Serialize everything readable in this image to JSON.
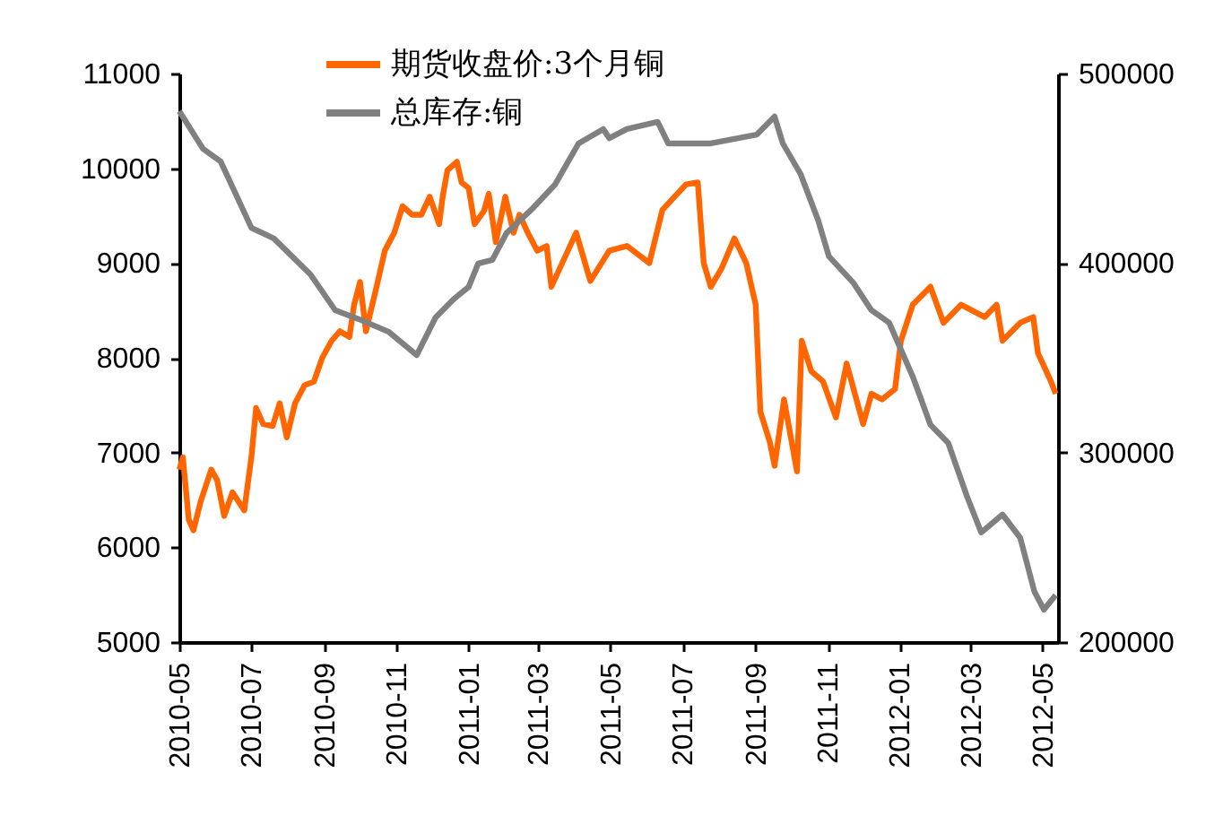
{
  "chart_data": {
    "type": "line",
    "legend": "top",
    "line_style": "solid",
    "marker": "none",
    "grid": false,
    "xlim": [
      "2010-05-01",
      "2012-05-14"
    ],
    "xticks": [
      "2010-05",
      "2010-07",
      "2010-09",
      "2010-11",
      "2011-01",
      "2011-03",
      "2011-05",
      "2011-07",
      "2011-09",
      "2011-11",
      "2012-01",
      "2012-03",
      "2012-05"
    ],
    "ylim": [
      5000,
      11000
    ],
    "yticks": [
      5000,
      6000,
      7000,
      8000,
      9000,
      10000,
      11000
    ],
    "y2lim": [
      200000,
      500000
    ],
    "y2ticks": [
      200000,
      300000,
      400000,
      500000
    ],
    "series": [
      {
        "name": "期货收盘价:3个月铜",
        "color": "#ff6600",
        "x": [
          "2010-05-01",
          "2010-05-04",
          "2010-05-09",
          "2010-05-13",
          "2010-05-19",
          "2010-05-28",
          "2010-06-02",
          "2010-06-08",
          "2010-06-15",
          "2010-06-25",
          "2010-07-01",
          "2010-07-05",
          "2010-07-11",
          "2010-07-19",
          "2010-07-25",
          "2010-07-31",
          "2010-08-07",
          "2010-08-15",
          "2010-08-23",
          "2010-08-30",
          "2010-09-07",
          "2010-09-14",
          "2010-09-22",
          "2010-09-26",
          "2010-10-01",
          "2010-10-06",
          "2010-10-15",
          "2010-10-22",
          "2010-10-30",
          "2010-11-06",
          "2010-11-14",
          "2010-11-22",
          "2010-11-29",
          "2010-12-07",
          "2010-12-10",
          "2010-12-14",
          "2010-12-22",
          "2010-12-26",
          "2011-01-01",
          "2011-01-06",
          "2011-01-14",
          "2011-01-18",
          "2011-01-24",
          "2011-02-01",
          "2011-02-08",
          "2011-02-13",
          "2011-02-20",
          "2011-02-28",
          "2011-03-08",
          "2011-03-12",
          "2011-04-02",
          "2011-04-14",
          "2011-04-30",
          "2011-05-15",
          "2011-06-03",
          "2011-06-14",
          "2011-07-04",
          "2011-07-14",
          "2011-07-19",
          "2011-07-25",
          "2011-08-03",
          "2011-08-14",
          "2011-08-24",
          "2011-09-01",
          "2011-09-05",
          "2011-09-13",
          "2011-09-17",
          "2011-09-25",
          "2011-10-06",
          "2011-10-10",
          "2011-10-18",
          "2011-10-28",
          "2011-11-08",
          "2011-11-17",
          "2011-12-01",
          "2011-12-08",
          "2011-12-17",
          "2011-12-28",
          "2012-01-02",
          "2012-01-12",
          "2012-01-27",
          "2012-02-07",
          "2012-02-22",
          "2012-03-13",
          "2012-03-23",
          "2012-03-28",
          "2012-04-12",
          "2012-04-23",
          "2012-04-27",
          "2012-05-08",
          "2012-05-12"
        ],
        "values": [
          6820,
          6950,
          6290,
          6180,
          6480,
          6820,
          6710,
          6330,
          6580,
          6390,
          6950,
          7470,
          7300,
          7280,
          7520,
          7160,
          7520,
          7710,
          7750,
          8000,
          8180,
          8280,
          8220,
          8560,
          8800,
          8280,
          8750,
          9130,
          9320,
          9600,
          9510,
          9510,
          9700,
          9410,
          9700,
          9980,
          10070,
          9850,
          9790,
          9410,
          9550,
          9730,
          9220,
          9700,
          9320,
          9510,
          9320,
          9130,
          9180,
          8750,
          9320,
          8810,
          9130,
          9180,
          9000,
          9560,
          9830,
          9850,
          9000,
          8750,
          8940,
          9260,
          9000,
          8560,
          7430,
          7110,
          6860,
          7560,
          6800,
          8180,
          7860,
          7750,
          7370,
          7940,
          7300,
          7620,
          7560,
          7670,
          8180,
          8560,
          8750,
          8370,
          8560,
          8430,
          8560,
          8180,
          8370,
          8430,
          8050,
          7750,
          7620
        ]
      },
      {
        "name": "总库存:铜",
        "color": "#808080",
        "axis": "y2",
        "x": [
          "2010-05-01",
          "2010-05-21",
          "2010-06-05",
          "2010-07-01",
          "2010-07-20",
          "2010-08-20",
          "2010-09-10",
          "2010-09-30",
          "2010-10-25",
          "2010-11-18",
          "2010-12-04",
          "2010-12-19",
          "2011-01-01",
          "2011-01-09",
          "2011-01-21",
          "2011-02-02",
          "2011-02-23",
          "2011-03-15",
          "2011-04-04",
          "2011-04-25",
          "2011-04-30",
          "2011-05-15",
          "2011-06-10",
          "2011-06-19",
          "2011-07-25",
          "2011-09-02",
          "2011-09-17",
          "2011-09-24",
          "2011-10-09",
          "2011-10-24",
          "2011-11-02",
          "2011-11-23",
          "2011-12-08",
          "2011-12-23",
          "2012-01-12",
          "2012-01-27",
          "2012-02-11",
          "2012-02-27",
          "2012-03-10",
          "2012-03-28",
          "2012-04-12",
          "2012-04-24",
          "2012-05-02",
          "2012-05-12"
        ],
        "values": [
          480100,
          460300,
          453600,
          418600,
          413000,
          394000,
          375100,
          370400,
          363800,
          351400,
          371300,
          380800,
          387400,
          399700,
          401600,
          415800,
          428100,
          441300,
          463100,
          470700,
          465900,
          470700,
          474500,
          463100,
          463100,
          467800,
          477300,
          463100,
          447000,
          422400,
          403500,
          389300,
          375100,
          368500,
          340100,
          314600,
          305100,
          276700,
          257800,
          267300,
          255000,
          226600,
          217100,
          224700
        ]
      }
    ]
  }
}
